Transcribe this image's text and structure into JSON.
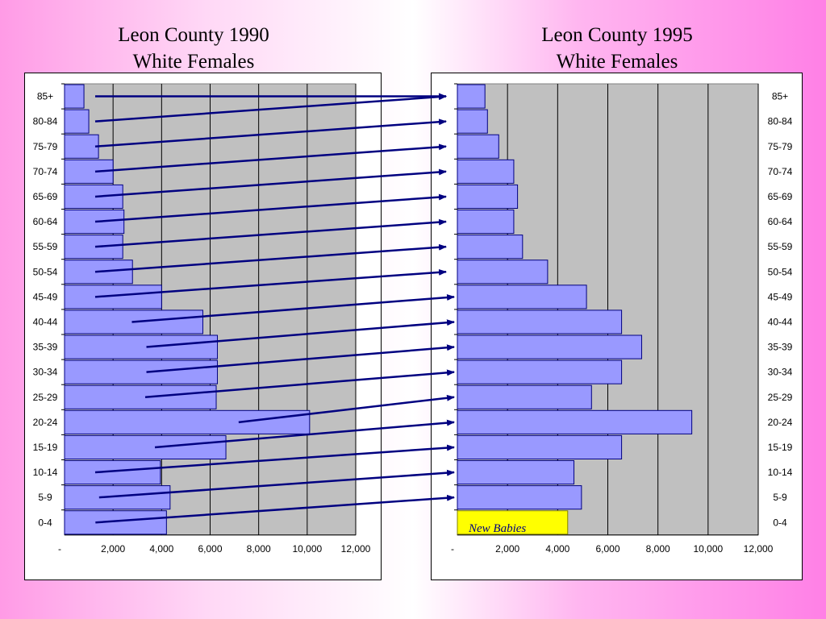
{
  "titles": {
    "left": {
      "line1": "Leon County 1990",
      "line2": "White Females"
    },
    "right": {
      "line1": "Leon County 1995",
      "line2": "White Females"
    }
  },
  "annotation": "New Babies",
  "colors": {
    "bar": "#9999ff",
    "bar_stroke": "#000080",
    "plot_bg": "#c0c0c0",
    "arrow": "#000080",
    "new_babies": "#ffff00"
  },
  "chart_data": [
    {
      "type": "bar",
      "orientation": "horizontal",
      "title": "Leon County 1990 White Females",
      "categories": [
        "85+",
        "80-84",
        "75-79",
        "70-74",
        "65-69",
        "60-64",
        "55-59",
        "50-54",
        "45-49",
        "40-44",
        "35-39",
        "30-34",
        "25-29",
        "20-24",
        "15-19",
        "10-14",
        "5-9",
        "0-4"
      ],
      "values": [
        800,
        1000,
        1400,
        2000,
        2400,
        2450,
        2400,
        2800,
        4000,
        5700,
        6300,
        6300,
        6250,
        10100,
        6650,
        3950,
        4350,
        4200
      ],
      "xlim": [
        0,
        12000
      ],
      "xticks": [
        "-",
        "2,000",
        "4,000",
        "6,000",
        "8,000",
        "10,000",
        "12,000"
      ],
      "axis_side": "left",
      "grid": true
    },
    {
      "type": "bar",
      "orientation": "horizontal",
      "title": "Leon County 1995 White Females",
      "categories": [
        "85+",
        "80-84",
        "75-79",
        "70-74",
        "65-69",
        "60-64",
        "55-59",
        "50-54",
        "45-49",
        "40-44",
        "35-39",
        "30-34",
        "25-29",
        "20-24",
        "15-19",
        "10-14",
        "5-9",
        "0-4"
      ],
      "values": [
        1100,
        1200,
        1650,
        2250,
        2400,
        2250,
        2600,
        3600,
        5150,
        6550,
        7350,
        6550,
        5350,
        9350,
        6550,
        4650,
        4950,
        4400
      ],
      "xlim": [
        0,
        12000
      ],
      "xticks": [
        "-",
        "2,000",
        "4,000",
        "6,000",
        "8,000",
        "10,000",
        "12,000"
      ],
      "axis_side": "right",
      "grid": true,
      "highlight": {
        "category": "0-4",
        "label": "New Babies",
        "color": "#ffff00"
      }
    }
  ]
}
